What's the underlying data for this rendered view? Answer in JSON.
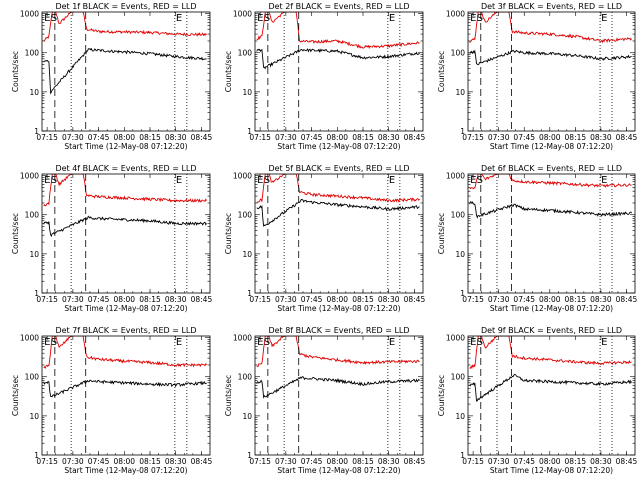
{
  "figure": {
    "x_label": "Start Time (12-May-08 07:12:20)",
    "y_label": "Counts/sec",
    "x_ticks": [
      "07:15",
      "07:30",
      "07:45",
      "08:00",
      "08:15",
      "08:30",
      "08:45"
    ],
    "y_ticks": [
      "1",
      "10",
      "100",
      "1000"
    ],
    "markers": [
      {
        "label": "E",
        "time": "07:12:40"
      },
      {
        "label": "S",
        "time": "07:16:30"
      },
      {
        "label": "",
        "time": "07:19:30"
      },
      {
        "label": "",
        "time": "07:29:00"
      },
      {
        "label": "",
        "time": "07:37:30"
      },
      {
        "label": "E",
        "time": "08:29:30"
      },
      {
        "label": "",
        "time": "08:36:30"
      }
    ],
    "colors": {
      "events": "#000000",
      "lld": "#e00000",
      "axes": "#000000"
    }
  },
  "chart_data": [
    {
      "type": "line",
      "title": "Det 1f BLACK = Events, RED = LLD",
      "xlabel": "Start Time (12-May-08 07:12:20)",
      "ylabel": "Counts/sec",
      "x_range": [
        "07:12",
        "08:50"
      ],
      "y_scale": "log",
      "ylim": [
        1,
        1100
      ],
      "series": [
        {
          "color": "red",
          "x": [
            "07:13",
            "07:16",
            "07:18",
            "07:20",
            "07:22",
            "07:29",
            "07:36",
            "07:38",
            "07:45",
            "08:00",
            "08:15",
            "08:30",
            "08:48"
          ],
          "values": [
            200,
            260,
            1100,
            1100,
            550,
            1100,
            1100,
            400,
            350,
            340,
            330,
            300,
            290
          ]
        },
        {
          "color": "black",
          "x": [
            "07:13",
            "07:16",
            "07:17",
            "07:39",
            "07:45",
            "08:00",
            "08:15",
            "08:30",
            "08:48"
          ],
          "values": [
            60,
            62,
            10,
            120,
            115,
            105,
            95,
            80,
            70
          ]
        }
      ]
    },
    {
      "type": "line",
      "title": "Det 2f BLACK = Events, RED = LLD",
      "xlabel": "Start Time (12-May-08 07:12:20)",
      "ylabel": "Counts/sec",
      "x_range": [
        "07:12",
        "08:50"
      ],
      "y_scale": "log",
      "ylim": [
        1,
        1100
      ],
      "series": [
        {
          "color": "red",
          "x": [
            "07:13",
            "07:16",
            "07:18",
            "07:20",
            "07:22",
            "07:29",
            "07:36",
            "07:38",
            "07:45",
            "08:00",
            "08:15",
            "08:30",
            "08:48"
          ],
          "values": [
            230,
            260,
            1100,
            1100,
            600,
            1100,
            1100,
            200,
            190,
            200,
            140,
            150,
            180
          ]
        },
        {
          "color": "black",
          "x": [
            "07:13",
            "07:16",
            "07:17",
            "07:39",
            "07:45",
            "08:00",
            "08:15",
            "08:30",
            "08:48"
          ],
          "values": [
            115,
            120,
            40,
            120,
            115,
            110,
            75,
            80,
            100
          ]
        }
      ]
    },
    {
      "type": "line",
      "title": "Det 3f BLACK = Events, RED = LLD",
      "xlabel": "Start Time (12-May-08 07:12:20)",
      "ylabel": "Counts/sec",
      "x_range": [
        "07:12",
        "08:50"
      ],
      "y_scale": "log",
      "ylim": [
        1,
        1100
      ],
      "series": [
        {
          "color": "red",
          "x": [
            "07:13",
            "07:16",
            "07:18",
            "07:20",
            "07:22",
            "07:29",
            "07:36",
            "07:38",
            "07:45",
            "08:00",
            "08:15",
            "08:30",
            "08:48"
          ],
          "values": [
            190,
            230,
            1100,
            1100,
            600,
            1100,
            1100,
            350,
            320,
            300,
            260,
            200,
            230
          ]
        },
        {
          "color": "black",
          "x": [
            "07:13",
            "07:16",
            "07:17",
            "07:39",
            "07:45",
            "08:00",
            "08:15",
            "08:30",
            "08:48"
          ],
          "values": [
            100,
            110,
            50,
            110,
            100,
            95,
            85,
            70,
            80
          ]
        }
      ]
    },
    {
      "type": "line",
      "title": "Det 4f BLACK = Events, RED = LLD",
      "xlabel": "Start Time (12-May-08 07:12:20)",
      "ylabel": "Counts/sec",
      "x_range": [
        "07:12",
        "08:50"
      ],
      "y_scale": "log",
      "ylim": [
        1,
        1100
      ],
      "series": [
        {
          "color": "red",
          "x": [
            "07:13",
            "07:16",
            "07:18",
            "07:20",
            "07:22",
            "07:29",
            "07:36",
            "07:38",
            "07:45",
            "08:00",
            "08:15",
            "08:30",
            "08:48"
          ],
          "values": [
            170,
            200,
            1100,
            1100,
            600,
            1100,
            1100,
            310,
            290,
            270,
            250,
            230,
            230
          ]
        },
        {
          "color": "black",
          "x": [
            "07:13",
            "07:16",
            "07:17",
            "07:39",
            "07:45",
            "08:00",
            "08:15",
            "08:30",
            "08:48"
          ],
          "values": [
            60,
            65,
            30,
            85,
            80,
            75,
            70,
            60,
            60
          ]
        }
      ]
    },
    {
      "type": "line",
      "title": "Det 5f BLACK = Events, RED = LLD",
      "xlabel": "Start Time (12-May-08 07:12:20)",
      "ylabel": "Counts/sec",
      "x_range": [
        "07:12",
        "08:50"
      ],
      "y_scale": "log",
      "ylim": [
        1,
        1100
      ],
      "series": [
        {
          "color": "red",
          "x": [
            "07:13",
            "07:16",
            "07:18",
            "07:20",
            "07:22",
            "07:29",
            "07:36",
            "07:38",
            "07:45",
            "08:00",
            "08:15",
            "08:30",
            "08:48"
          ],
          "values": [
            220,
            240,
            1100,
            1100,
            650,
            1100,
            1100,
            380,
            330,
            300,
            270,
            230,
            250
          ]
        },
        {
          "color": "black",
          "x": [
            "07:13",
            "07:16",
            "07:17",
            "07:39",
            "07:45",
            "08:00",
            "08:15",
            "08:30",
            "08:48"
          ],
          "values": [
            150,
            160,
            50,
            230,
            210,
            180,
            160,
            140,
            160
          ]
        }
      ]
    },
    {
      "type": "line",
      "title": "Det 6f BLACK = Events, RED = LLD",
      "xlabel": "Start Time (12-May-08 07:12:20)",
      "ylabel": "Counts/sec",
      "x_range": [
        "07:12",
        "08:50"
      ],
      "y_scale": "log",
      "ylim": [
        1,
        1100
      ],
      "series": [
        {
          "color": "red",
          "x": [
            "07:13",
            "07:16",
            "07:18",
            "07:20",
            "07:22",
            "07:29",
            "07:36",
            "07:38",
            "07:45",
            "08:00",
            "08:15",
            "08:30",
            "08:48"
          ],
          "values": [
            450,
            480,
            1100,
            1100,
            800,
            1100,
            1100,
            750,
            700,
            650,
            600,
            550,
            580
          ]
        },
        {
          "color": "black",
          "x": [
            "07:13",
            "07:16",
            "07:17",
            "07:39",
            "07:45",
            "08:00",
            "08:15",
            "08:30",
            "08:48"
          ],
          "values": [
            200,
            200,
            90,
            180,
            140,
            130,
            115,
            100,
            110
          ]
        }
      ]
    },
    {
      "type": "line",
      "title": "Det 7f BLACK = Events, RED = LLD",
      "xlabel": "Start Time (12-May-08 07:12:20)",
      "ylabel": "Counts/sec",
      "x_range": [
        "07:12",
        "08:50"
      ],
      "y_scale": "log",
      "ylim": [
        1,
        1100
      ],
      "series": [
        {
          "color": "red",
          "x": [
            "07:13",
            "07:16",
            "07:18",
            "07:20",
            "07:22",
            "07:29",
            "07:36",
            "07:38",
            "07:45",
            "08:00",
            "08:15",
            "08:30",
            "08:48"
          ],
          "values": [
            170,
            190,
            1100,
            1100,
            550,
            1100,
            1100,
            320,
            280,
            250,
            230,
            200,
            200
          ]
        },
        {
          "color": "black",
          "x": [
            "07:13",
            "07:16",
            "07:17",
            "07:39",
            "07:45",
            "08:00",
            "08:15",
            "08:30",
            "08:48"
          ],
          "values": [
            70,
            75,
            30,
            80,
            75,
            70,
            65,
            62,
            70
          ]
        }
      ]
    },
    {
      "type": "line",
      "title": "Det 8f BLACK = Events, RED = LLD",
      "xlabel": "Start Time (12-May-08 07:12:20)",
      "ylabel": "Counts/sec",
      "x_range": [
        "07:12",
        "08:50"
      ],
      "y_scale": "log",
      "ylim": [
        1,
        1100
      ],
      "series": [
        {
          "color": "red",
          "x": [
            "07:13",
            "07:16",
            "07:18",
            "07:20",
            "07:22",
            "07:29",
            "07:36",
            "07:38",
            "07:45",
            "08:00",
            "08:15",
            "08:30",
            "08:48"
          ],
          "values": [
            190,
            210,
            1100,
            1100,
            600,
            1100,
            1100,
            380,
            320,
            270,
            230,
            240,
            250
          ]
        },
        {
          "color": "black",
          "x": [
            "07:13",
            "07:16",
            "07:17",
            "07:39",
            "07:45",
            "08:00",
            "08:15",
            "08:30",
            "08:48"
          ],
          "values": [
            70,
            80,
            30,
            95,
            90,
            80,
            65,
            75,
            80
          ]
        }
      ]
    },
    {
      "type": "line",
      "title": "Det 9f BLACK = Events, RED = LLD",
      "xlabel": "Start Time (12-May-08 07:12:20)",
      "ylabel": "Counts/sec",
      "x_range": [
        "07:12",
        "08:50"
      ],
      "y_scale": "log",
      "ylim": [
        1,
        1100
      ],
      "series": [
        {
          "color": "red",
          "x": [
            "07:13",
            "07:16",
            "07:18",
            "07:20",
            "07:22",
            "07:29",
            "07:36",
            "07:38",
            "07:45",
            "08:00",
            "08:15",
            "08:30",
            "08:48"
          ],
          "values": [
            170,
            190,
            1100,
            1100,
            550,
            1100,
            1100,
            340,
            300,
            270,
            240,
            220,
            240
          ]
        },
        {
          "color": "black",
          "x": [
            "07:13",
            "07:16",
            "07:17",
            "07:39",
            "07:45",
            "08:00",
            "08:15",
            "08:30",
            "08:48"
          ],
          "values": [
            60,
            65,
            25,
            110,
            80,
            75,
            70,
            65,
            75
          ]
        }
      ]
    }
  ]
}
